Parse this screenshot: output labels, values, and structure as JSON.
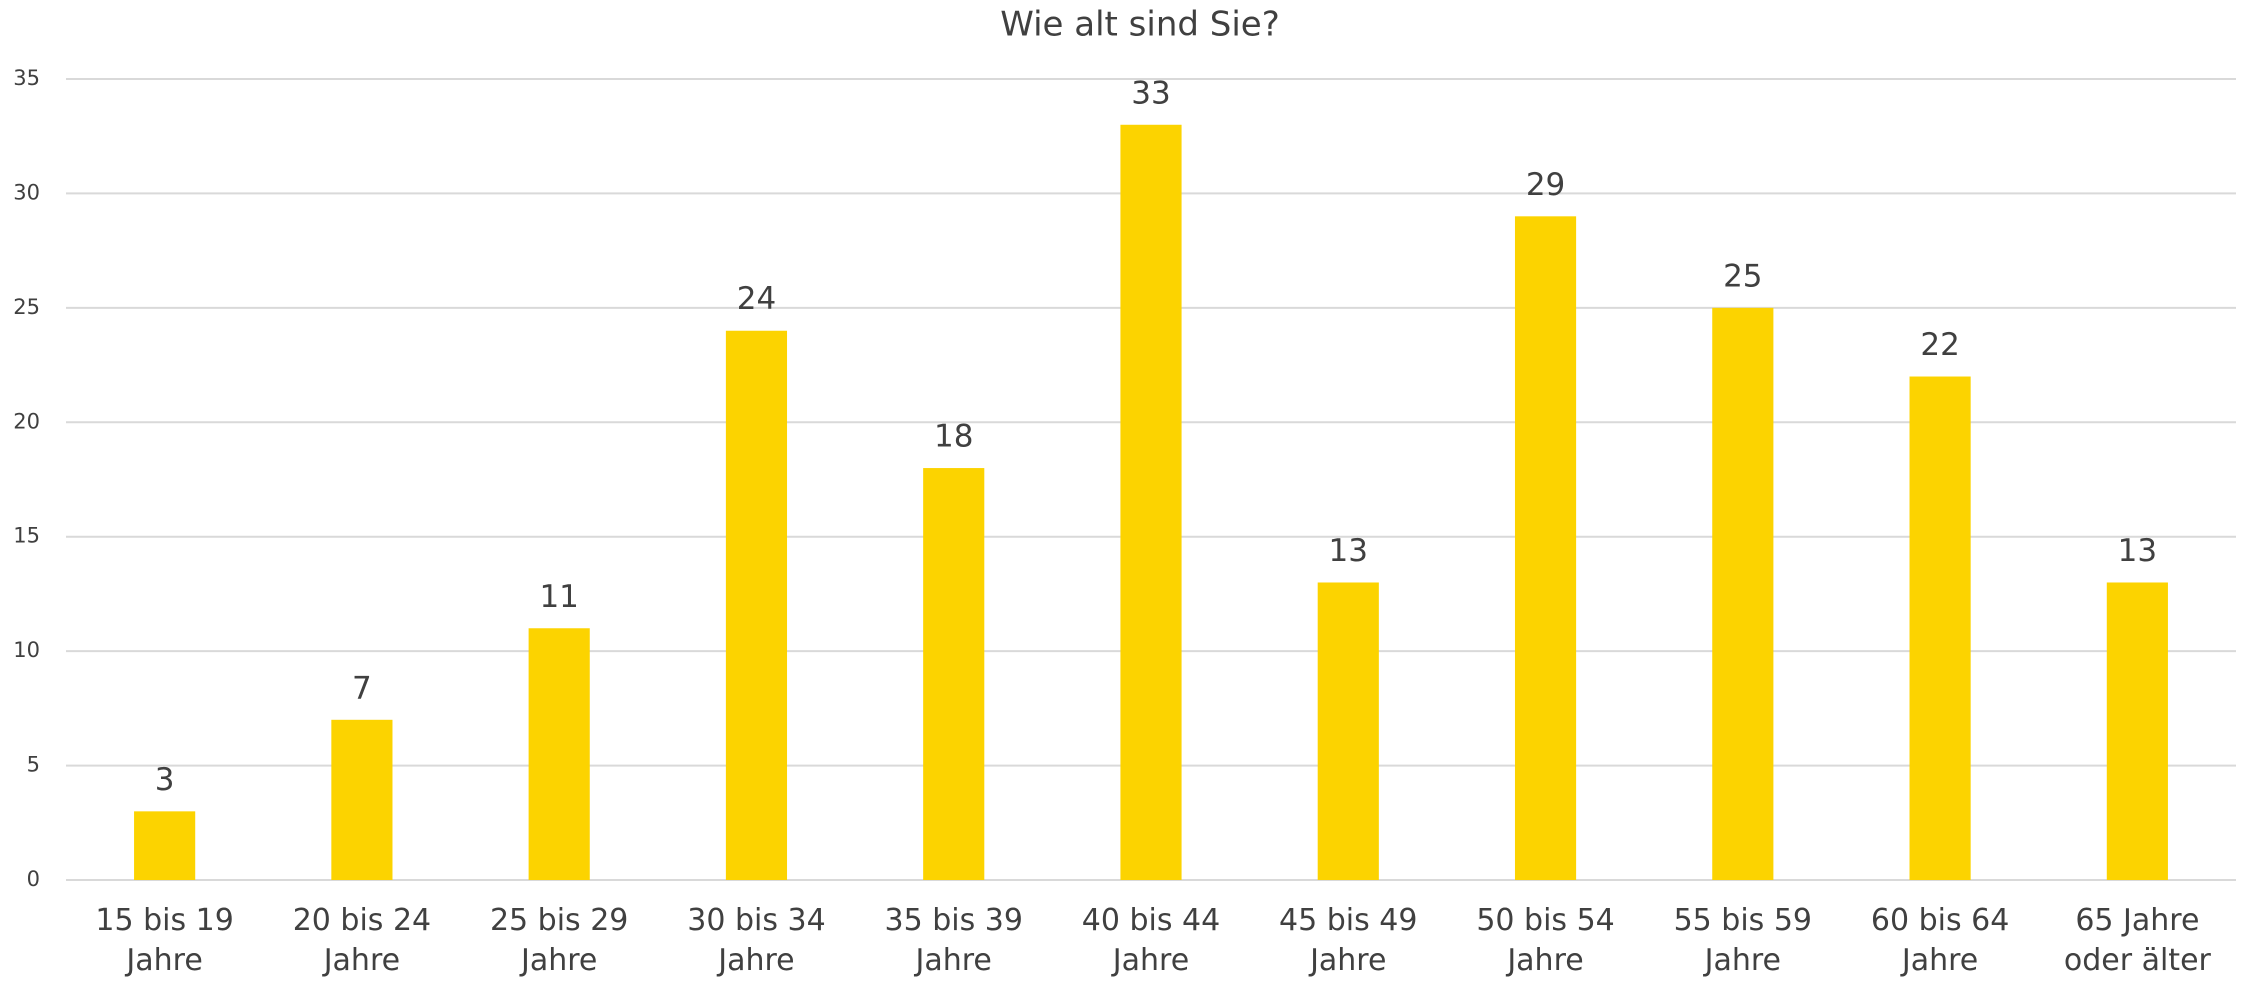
{
  "chart_data": {
    "type": "bar",
    "title": "Wie alt sind Sie?",
    "categories": [
      "15 bis 19\nJahre",
      "20 bis 24\nJahre",
      "25 bis 29\nJahre",
      "30 bis 34\nJahre",
      "35 bis 39\nJahre",
      "40 bis 44\nJahre",
      "45 bis 49\nJahre",
      "50 bis 54\nJahre",
      "55 bis 59\nJahre",
      "60 bis 64\nJahre",
      "65 Jahre\noder älter"
    ],
    "values": [
      3,
      7,
      11,
      24,
      18,
      33,
      13,
      29,
      25,
      22,
      13
    ],
    "color": "#fcd300",
    "ylim": [
      0,
      35
    ],
    "yticks": [
      0,
      5,
      10,
      15,
      20,
      25,
      30,
      35
    ],
    "grid": true
  }
}
